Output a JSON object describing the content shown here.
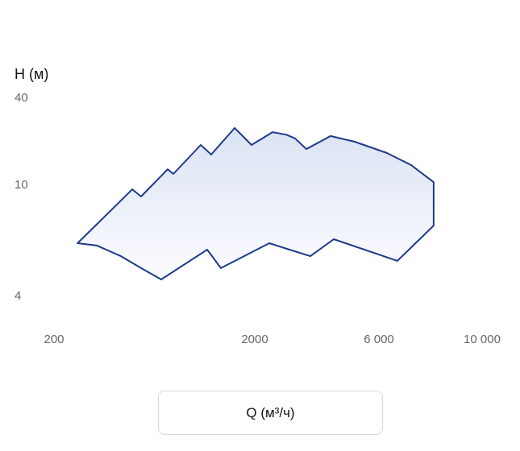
{
  "chart_data": {
    "type": "area",
    "y_label": "H (м)",
    "x_label": "Q (м³/ч)",
    "log_x": true,
    "log_y": true,
    "x": [
      262,
      491,
      543,
      737,
      786,
      1076,
      1214,
      1588,
      1928,
      2340,
      2642,
      2858,
      3158,
      3910,
      4844,
      6245,
      7037,
      7868,
      7868,
      6575,
      4024,
      3272,
      2274,
      1356,
      1159,
      684,
      543,
      431,
      327
    ],
    "values": [
      6.2,
      9.67,
      9.11,
      12.9,
      11.97,
      19.0,
      16.3,
      24.9,
      19.0,
      23.3,
      22.4,
      21.1,
      17.8,
      21.9,
      20.0,
      16.7,
      13.8,
      10.5,
      7.17,
      5.36,
      6.41,
      5.57,
      6.2,
      5.05,
      5.88,
      4.6,
      5.05,
      5.57,
      6.08
    ],
    "color": "#1f3a8a",
    "xlim": [
      200,
      10000
    ],
    "xticks": [
      200,
      2000,
      {
        "value": 6000,
        "label": "6 000"
      },
      {
        "value": 10000,
        "label": "10 000"
      }
    ],
    "ylim": [
      4,
      40
    ],
    "yticks": [
      4,
      10,
      40
    ]
  }
}
